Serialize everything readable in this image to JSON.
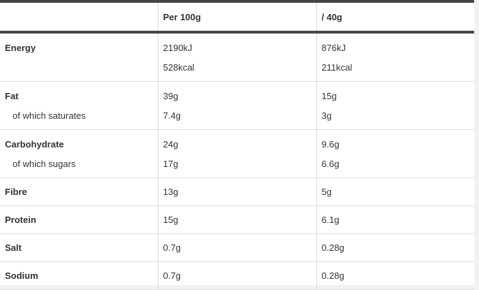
{
  "header": {
    "col_name": "",
    "col_per100": "Per 100g",
    "col_per40": "/ 40g"
  },
  "rows": [
    {
      "name": "Energy",
      "per100": "2190kJ",
      "per40": "876kJ"
    },
    {
      "name": "",
      "per100": "528kcal",
      "per40": "211kcal"
    },
    {
      "name": "Fat",
      "per100": "39g",
      "per40": "15g"
    },
    {
      "name": "of which saturates",
      "per100": "7.4g",
      "per40": "3g"
    },
    {
      "name": "Carbohydrate",
      "per100": "24g",
      "per40": "9.6g"
    },
    {
      "name": "of which sugars",
      "per100": "17g",
      "per40": "6.6g"
    },
    {
      "name": "Fibre",
      "per100": "13g",
      "per40": "5g"
    },
    {
      "name": "Protein",
      "per100": "15g",
      "per40": "6.1g"
    },
    {
      "name": "Salt",
      "per100": "0.7g",
      "per40": "0.28g"
    },
    {
      "name": "Sodium",
      "per100": "0.7g",
      "per40": "0.28g"
    }
  ],
  "colors": {
    "header_rule": "#444444",
    "divider": "#dcdcdc",
    "text": "#333333"
  }
}
